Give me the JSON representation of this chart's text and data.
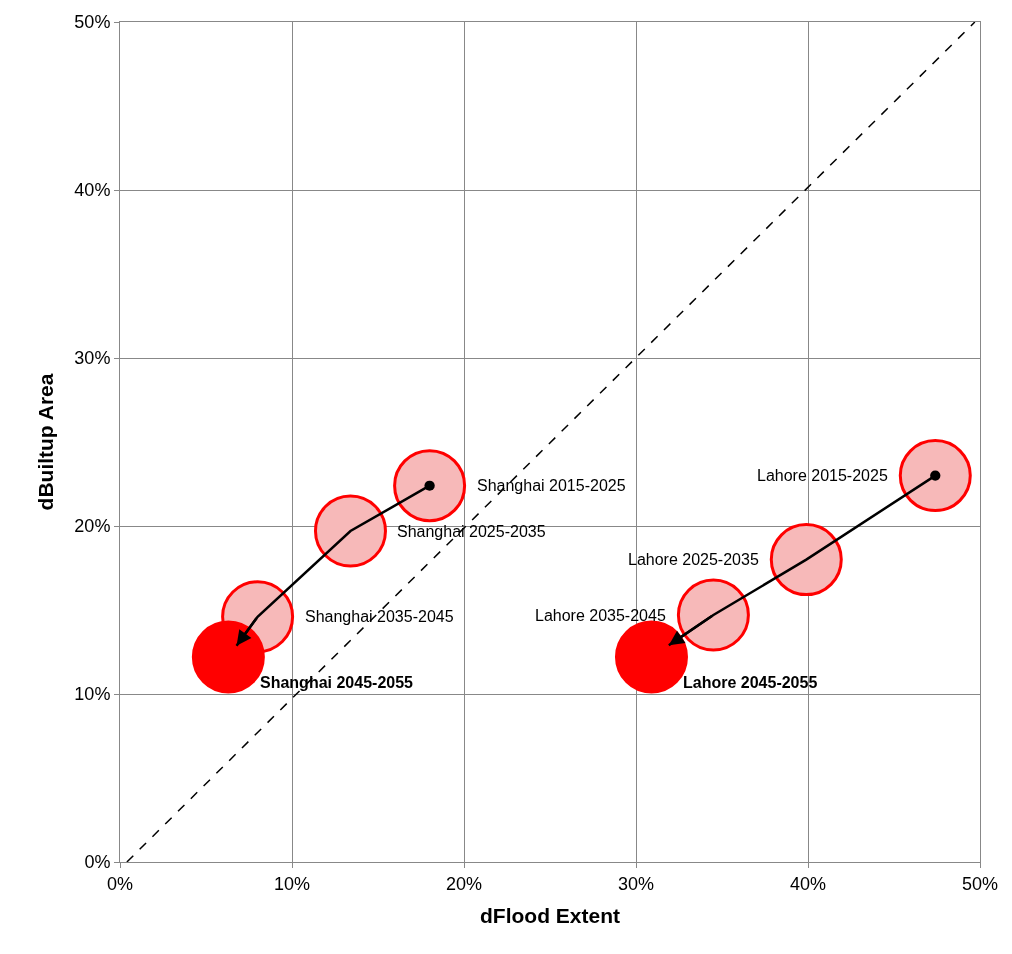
{
  "chart_data": {
    "type": "scatter",
    "xlabel": "dFlood Extent",
    "ylabel": "dBuiltup Area",
    "xlim": [
      0,
      50
    ],
    "ylim": [
      0,
      50
    ],
    "xticks": [
      {
        "value": 0,
        "label": "0%"
      },
      {
        "value": 10,
        "label": "10%"
      },
      {
        "value": 20,
        "label": "20%"
      },
      {
        "value": 30,
        "label": "30%"
      },
      {
        "value": 40,
        "label": "40%"
      },
      {
        "value": 50,
        "label": "50%"
      }
    ],
    "yticks": [
      {
        "value": 0,
        "label": "0%"
      },
      {
        "value": 10,
        "label": "10%"
      },
      {
        "value": 20,
        "label": "20%"
      },
      {
        "value": 30,
        "label": "30%"
      },
      {
        "value": 40,
        "label": "40%"
      },
      {
        "value": 50,
        "label": "50%"
      }
    ],
    "grid": true,
    "series": [
      {
        "type": "line",
        "color": "#000000",
        "line_style": "dashed",
        "marker": "none",
        "x": [
          0.4,
          49.7
        ],
        "values": [
          0,
          50
        ]
      },
      {
        "color": "#ff0000",
        "marker": "circle",
        "colors": [
          "#f7b9b9",
          "#f7b9b9",
          "#f7b9b9",
          "#ff0000"
        ],
        "x": [
          18.0,
          13.4,
          8.0,
          6.3
        ],
        "values": [
          22.4,
          19.7,
          14.6,
          12.2
        ],
        "value_labels": [
          "Shanghai 2015-2025",
          "Shanghai 2025-2035",
          "Shanghai 2035-2045",
          "Shanghai 2045-2055"
        ]
      },
      {
        "color": "#ff0000",
        "marker": "circle",
        "colors": [
          "#f7b9b9",
          "#f7b9b9",
          "#f7b9b9",
          "#ff0000"
        ],
        "x": [
          47.4,
          39.9,
          34.5,
          30.9
        ],
        "values": [
          23.0,
          18.0,
          14.7,
          12.2
        ],
        "value_labels": [
          "Lahore 2015-2025",
          "Lahore 2025-2035",
          "Lahore 2035-2045",
          "Lahore 2045-2055"
        ]
      }
    ]
  }
}
